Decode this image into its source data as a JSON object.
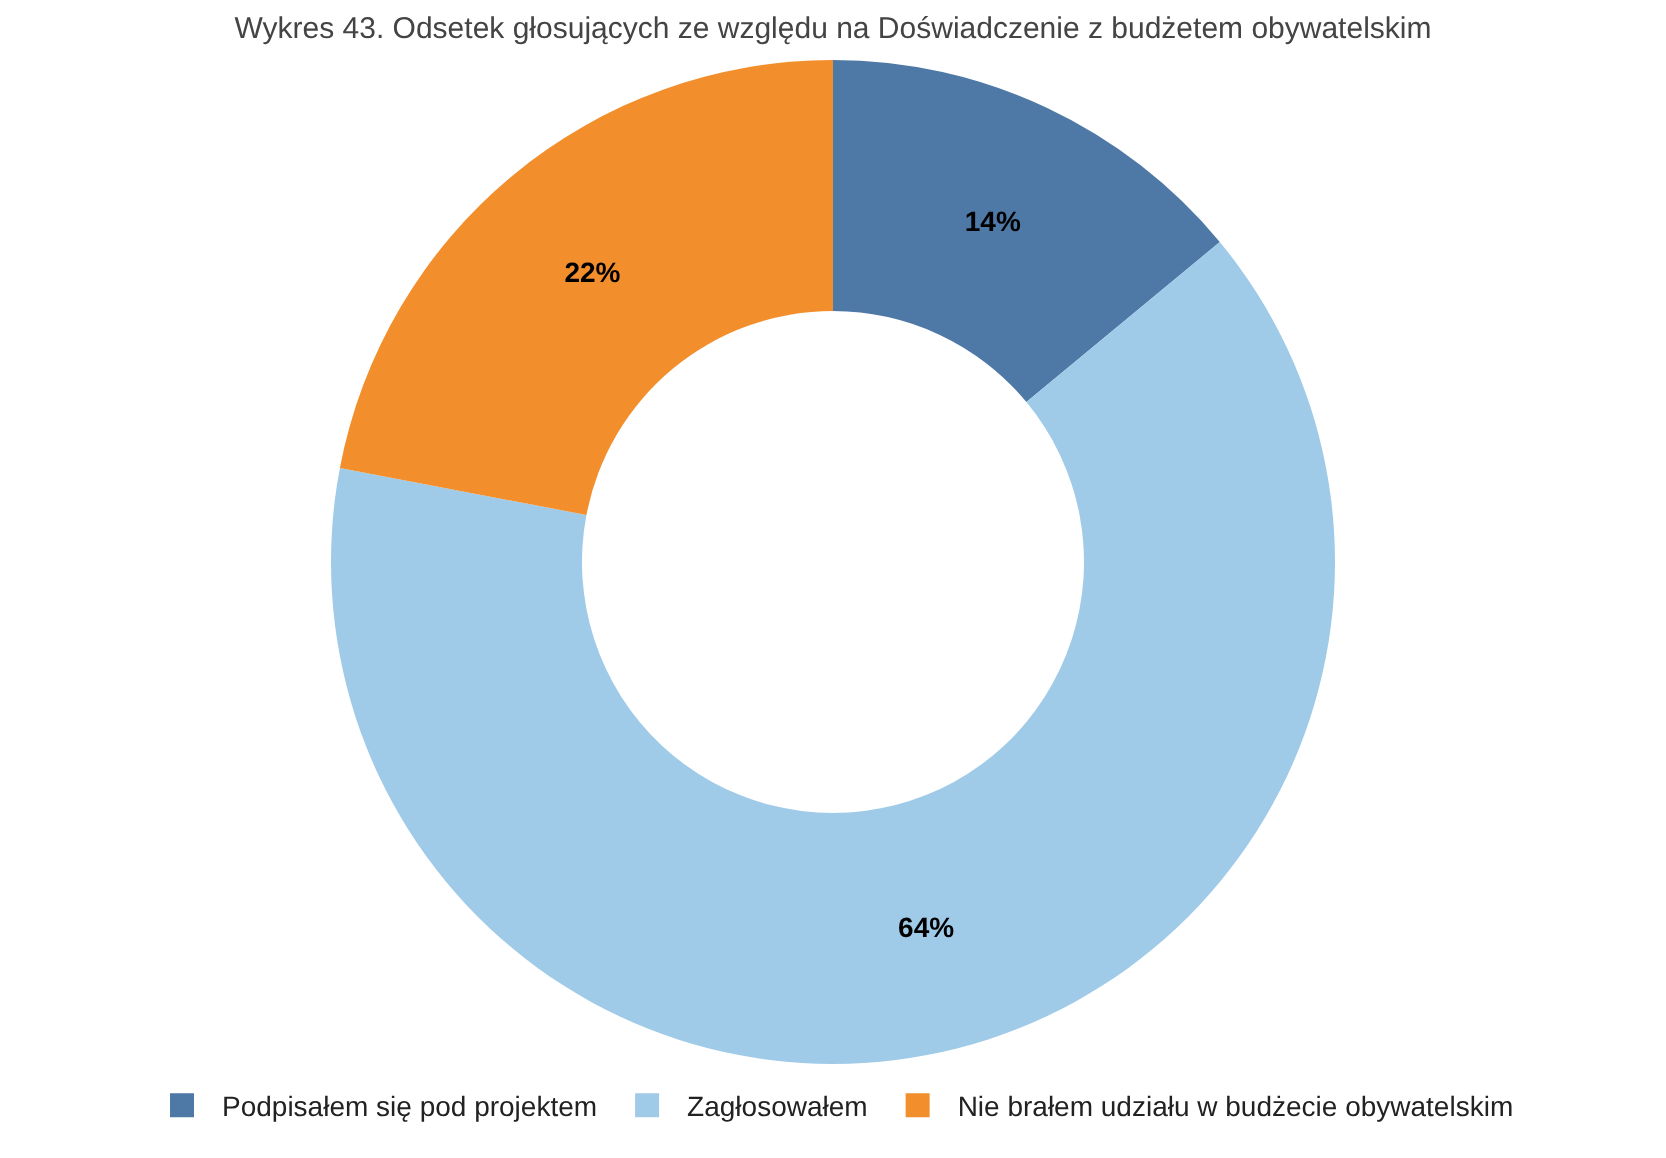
{
  "chart_data": {
    "type": "donut",
    "title": "Wykres 43. Odsetek głosujących ze względu na Doświadczenie z budżetem obywatelskim",
    "categories": [
      "Podpisałem się pod projektem",
      "Zagłosowałem",
      "Nie brałem udziału w budżecie obywatelskim"
    ],
    "values": [
      14,
      64,
      22
    ],
    "colors": [
      "#4e79a7",
      "#a0cbe8",
      "#f28e2b"
    ],
    "value_labels": [
      "14%",
      "64%",
      "22%"
    ],
    "legend": "bottom"
  }
}
